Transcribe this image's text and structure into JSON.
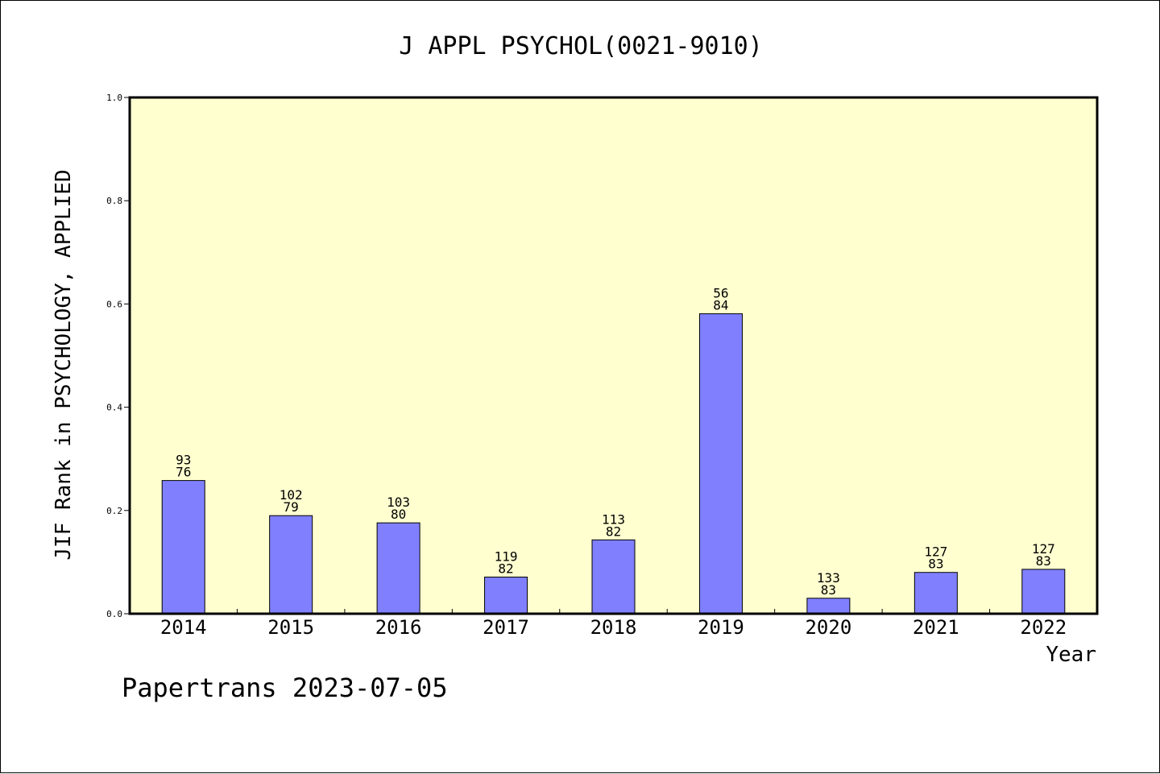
{
  "chart_data": {
    "type": "bar",
    "title": "J APPL PSYCHOL(0021-9010)",
    "xlabel": "Year",
    "ylabel": "JIF Rank in PSYCHOLOGY, APPLIED",
    "ylim": [
      0,
      1.0
    ],
    "yticks": [
      "0.0",
      "0.2",
      "0.4",
      "0.6",
      "0.8",
      "1.0"
    ],
    "categories": [
      "2014",
      "2015",
      "2016",
      "2017",
      "2018",
      "2019",
      "2020",
      "2021",
      "2022"
    ],
    "values": [
      0.258,
      0.19,
      0.176,
      0.071,
      0.143,
      0.581,
      0.03,
      0.08,
      0.086
    ],
    "bar_labels": [
      [
        "93",
        "76"
      ],
      [
        "102",
        "79"
      ],
      [
        "103",
        "80"
      ],
      [
        "119",
        "82"
      ],
      [
        "113",
        "82"
      ],
      [
        "56",
        "84"
      ],
      [
        "133",
        "83"
      ],
      [
        "127",
        "83"
      ],
      [
        "127",
        "83"
      ]
    ],
    "grid": false,
    "legend": "none",
    "plot_background": "#ffffd0",
    "bar_color": "#8080ff"
  },
  "footer": "Papertrans 2023-07-05"
}
